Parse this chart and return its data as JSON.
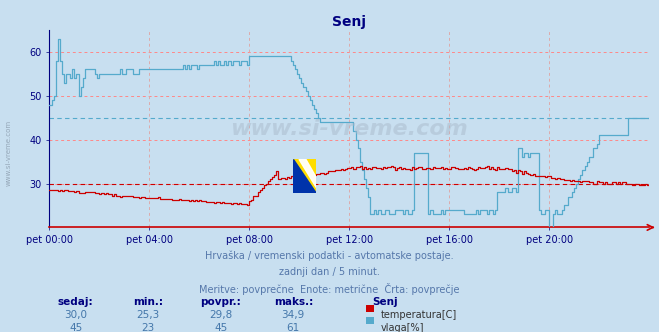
{
  "title": "Senj",
  "title_color": "#000080",
  "bg_color": "#c8dff0",
  "plot_bg_color": "#c8dff0",
  "grid_color_h": "#ff8888",
  "grid_color_v": "#ddaaaa",
  "axis_color": "#000080",
  "tick_color": "#000080",
  "temp_color": "#cc0000",
  "vlaga_color": "#55aacc",
  "avg_temp_color": "#cc0000",
  "avg_vlaga_color": "#55aacc",
  "avg_temp": 29.8,
  "avg_vlaga": 45.0,
  "ylim": [
    20,
    65
  ],
  "yticks": [
    30,
    40,
    50,
    60
  ],
  "xlim": [
    0,
    288
  ],
  "xtick_positions": [
    0,
    48,
    96,
    144,
    192,
    240
  ],
  "xtick_labels": [
    "pet 00:00",
    "pet 04:00",
    "pet 08:00",
    "pet 12:00",
    "pet 16:00",
    "pet 20:00"
  ],
  "watermark": "www.si-vreme.com",
  "footnote_line1": "Hrvaška / vremenski podatki - avtomatske postaje.",
  "footnote_line2": "zadnji dan / 5 minut.",
  "footnote_line3": "Meritve: povprečne  Enote: metrične  Črta: povprečje",
  "legend_title": "Senj",
  "col_headers": [
    "sedaj:",
    "min.:",
    "povpr.:",
    "maks.:"
  ],
  "temp_vals": [
    "30,0",
    "25,3",
    "29,8",
    "34,9"
  ],
  "vlaga_vals": [
    "45",
    "23",
    "45",
    "61"
  ],
  "temp_label": "temperatura[C]",
  "vlaga_label": "vlaga[%]",
  "sidewater_text": "www.si-vreme.com"
}
